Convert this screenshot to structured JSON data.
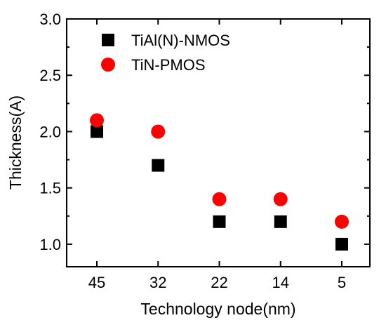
{
  "chart_data": {
    "type": "scatter",
    "title": "",
    "xlabel": "Technology node(nm)",
    "ylabel": "Thickness(A)",
    "categories": [
      "45",
      "32",
      "22",
      "14",
      "5"
    ],
    "ylim": [
      0.8,
      3.0
    ],
    "yticks": [
      "1.0",
      "1.5",
      "2.0",
      "2.5",
      "3.0"
    ],
    "grid": false,
    "legend_position": "top-left",
    "series": [
      {
        "name": "TiAl(N)-NMOS",
        "marker": "square",
        "color": "#000000",
        "values": [
          2.0,
          1.7,
          1.2,
          1.2,
          1.0
        ]
      },
      {
        "name": "TiN-PMOS",
        "marker": "circle",
        "color": "#ff0000",
        "values": [
          2.1,
          2.0,
          1.4,
          1.4,
          1.2
        ]
      }
    ]
  }
}
